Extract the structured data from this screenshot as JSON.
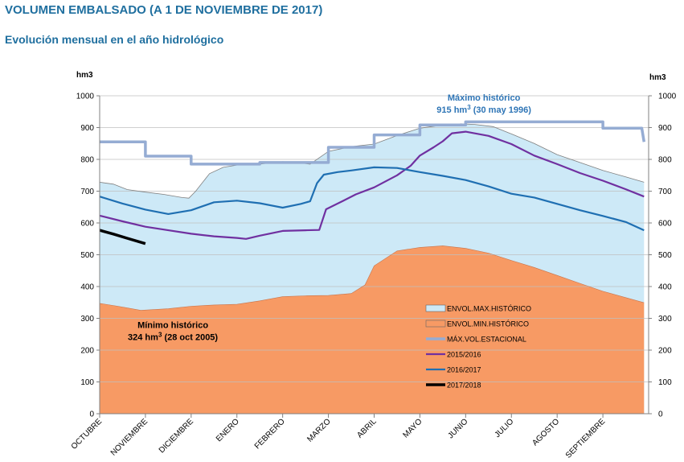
{
  "header": {
    "title": "VOLUMEN EMBALSADO (A 1 DE NOVIEMBRE DE 2017)",
    "subtitle": "Evolución mensual en el año hidrológico"
  },
  "chart_data": {
    "type": "area",
    "ylabel_left": "hm3",
    "ylabel_right": "hm3",
    "ylim": [
      0,
      1000
    ],
    "yticks": [
      0,
      100,
      200,
      300,
      400,
      500,
      600,
      700,
      800,
      900,
      1000
    ],
    "grid": "horizontal",
    "legend_position": "bottom-right",
    "x_domain": [
      0,
      12
    ],
    "categories": [
      "OCTUBRE",
      "NOVIEMBRE",
      "DICIEMBRE",
      "ENERO",
      "FEBRERO",
      "MARZO",
      "ABRIL",
      "MAYO",
      "JUNIO",
      "JULIO",
      "AGOSTO",
      "SEPTIEMBRE"
    ],
    "category_positions": [
      0,
      1,
      2,
      3,
      4,
      5,
      6,
      7,
      8,
      9,
      10,
      11
    ],
    "annotations": [
      {
        "line1": "Máximo histórico",
        "line2_pre": "915 hm",
        "sup": "3",
        "line2_post": " (30 may 1996)",
        "x": 8.4,
        "y": 985,
        "color": "#2e75b6"
      },
      {
        "line1": "Mínimo histórico",
        "line2_pre": "324 hm",
        "sup": "3",
        "line2_post": " (28 oct 2005)",
        "x": 1.6,
        "y": 270,
        "color": "#000000"
      }
    ],
    "colors": {
      "envol_max_fill": "#cde9f7",
      "envol_max_line": "#7f7f7f",
      "envol_min_fill": "#f79a64",
      "max_vol": "#95acd3",
      "s2015": "#7030a0",
      "s2016": "#1f6fb2",
      "s2017": "#000000"
    },
    "series": [
      {
        "key": "envol_max",
        "name": "ENVOL.MAX.HISTÓRICO",
        "kind": "area",
        "x": [
          0,
          0.3,
          0.6,
          1,
          1.4,
          1.8,
          1.95,
          2.1,
          2.4,
          2.7,
          3,
          3.5,
          4,
          4.3,
          4.6,
          5,
          5.5,
          6,
          6.5,
          7,
          7.5,
          7.9,
          8.2,
          8.6,
          9,
          9.5,
          10,
          10.5,
          11,
          11.5,
          11.9
        ],
        "y": [
          728,
          722,
          705,
          697,
          690,
          680,
          678,
          700,
          755,
          775,
          782,
          785,
          793,
          790,
          785,
          825,
          840,
          848,
          875,
          898,
          908,
          912,
          910,
          903,
          880,
          850,
          815,
          790,
          765,
          745,
          728
        ]
      },
      {
        "key": "envol_min",
        "name": "ENVOL.MIN.HISTÓRICO",
        "kind": "area",
        "x": [
          0,
          0.4,
          0.9,
          1.5,
          2,
          2.5,
          3,
          3.5,
          4,
          4.5,
          5,
          5.5,
          5.8,
          6,
          6.5,
          7,
          7.5,
          8,
          8.5,
          9,
          9.5,
          10,
          10.5,
          11,
          11.9
        ],
        "y": [
          347,
          338,
          325,
          330,
          338,
          342,
          344,
          355,
          368,
          371,
          372,
          378,
          405,
          465,
          512,
          523,
          528,
          520,
          505,
          482,
          460,
          435,
          410,
          385,
          349
        ]
      },
      {
        "key": "max_vol",
        "name": "MÁX.VOL.ESTACIONAL",
        "kind": "step",
        "x": [
          0,
          1,
          1,
          2,
          2,
          3.5,
          3.5,
          5,
          5,
          6,
          6,
          7,
          7,
          8,
          8,
          11,
          11,
          11.85,
          11.9
        ],
        "y": [
          855,
          855,
          810,
          810,
          785,
          785,
          790,
          790,
          838,
          838,
          877,
          877,
          908,
          908,
          918,
          918,
          898,
          898,
          855
        ]
      },
      {
        "key": "s2015",
        "name": "2015/2016",
        "kind": "line",
        "x": [
          0,
          0.5,
          1,
          1.5,
          2,
          2.5,
          3,
          3.2,
          3.5,
          4,
          4.5,
          4.8,
          4.95,
          5.3,
          5.6,
          6,
          6.5,
          6.8,
          7,
          7.3,
          7.5,
          7.7,
          8,
          8.5,
          9,
          9.5,
          10,
          10.5,
          11,
          11.5,
          11.9
        ],
        "y": [
          623,
          605,
          588,
          577,
          566,
          558,
          553,
          550,
          560,
          575,
          577,
          578,
          643,
          668,
          690,
          712,
          750,
          780,
          812,
          838,
          857,
          882,
          887,
          874,
          848,
          812,
          785,
          757,
          733,
          706,
          683
        ]
      },
      {
        "key": "s2016",
        "name": "2016/2017",
        "kind": "line",
        "x": [
          0,
          0.5,
          1,
          1.5,
          2,
          2.5,
          3,
          3.5,
          4,
          4.4,
          4.6,
          4.75,
          4.9,
          5.2,
          5.5,
          6,
          6.5,
          7,
          7.5,
          8,
          8.5,
          9,
          9.5,
          10,
          10.5,
          11,
          11.5,
          11.9
        ],
        "y": [
          683,
          661,
          642,
          628,
          640,
          665,
          670,
          662,
          648,
          660,
          668,
          725,
          752,
          760,
          765,
          775,
          773,
          760,
          748,
          735,
          715,
          692,
          680,
          660,
          640,
          622,
          603,
          577
        ]
      },
      {
        "key": "s2017",
        "name": "2017/2018",
        "kind": "line",
        "x": [
          0,
          0.3,
          0.6,
          1
        ],
        "y": [
          577,
          565,
          552,
          535
        ]
      }
    ]
  }
}
